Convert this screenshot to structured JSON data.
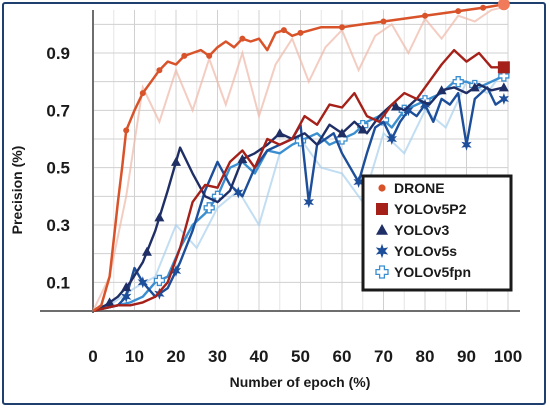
{
  "chart_data": {
    "type": "line",
    "xlabel": "Number of epoch (%)",
    "ylabel": "Precision (%)",
    "xlim": [
      0,
      100
    ],
    "ylim": [
      0,
      1.05
    ],
    "x_ticks": [
      "0",
      "10",
      "20",
      "30",
      "40",
      "50",
      "60",
      "70",
      "80",
      "90",
      "100"
    ],
    "x_tick_values": [
      0,
      10,
      20,
      30,
      40,
      50,
      60,
      70,
      80,
      90,
      100
    ],
    "y_ticks": [
      "0.1",
      "0.3",
      "0.5",
      "0.7",
      "0.9"
    ],
    "y_tick_values": [
      0.1,
      0.3,
      0.5,
      0.7,
      0.9
    ],
    "grid": true,
    "legend_position": "center-right",
    "series": [
      {
        "name": "DRONE",
        "color": "#d9532a",
        "marker": "circle",
        "x": [
          0,
          2,
          4,
          5,
          6,
          7,
          8,
          10,
          12,
          14,
          16,
          18,
          20,
          22,
          24,
          26,
          28,
          30,
          32,
          34,
          36,
          38,
          40,
          42,
          44,
          46,
          48,
          50,
          55,
          60,
          65,
          70,
          75,
          80,
          85,
          90,
          95,
          99
        ],
        "y": [
          0.0,
          0.02,
          0.12,
          0.25,
          0.38,
          0.5,
          0.63,
          0.7,
          0.76,
          0.8,
          0.84,
          0.87,
          0.86,
          0.89,
          0.9,
          0.91,
          0.89,
          0.92,
          0.94,
          0.92,
          0.95,
          0.94,
          0.95,
          0.91,
          0.97,
          0.98,
          0.96,
          0.97,
          0.99,
          0.99,
          1.0,
          1.01,
          1.02,
          1.03,
          1.04,
          1.05,
          1.06,
          1.07
        ],
        "marker_x": [
          8,
          12,
          16,
          22,
          28,
          36,
          46,
          50,
          60,
          70,
          80,
          88,
          94,
          99
        ]
      },
      {
        "name": "YOLOv5P2",
        "color": "#a52018",
        "marker": "square",
        "x": [
          0,
          3,
          6,
          9,
          12,
          15,
          18,
          21,
          24,
          27,
          30,
          33,
          36,
          39,
          42,
          45,
          48,
          51,
          54,
          57,
          60,
          63,
          66,
          69,
          72,
          75,
          78,
          81,
          84,
          87,
          90,
          93,
          96,
          99
        ],
        "y": [
          0.0,
          0.01,
          0.02,
          0.02,
          0.03,
          0.05,
          0.1,
          0.22,
          0.38,
          0.44,
          0.43,
          0.52,
          0.56,
          0.5,
          0.6,
          0.58,
          0.6,
          0.68,
          0.65,
          0.72,
          0.71,
          0.76,
          0.68,
          0.66,
          0.72,
          0.76,
          0.74,
          0.8,
          0.86,
          0.91,
          0.87,
          0.9,
          0.85,
          0.85
        ],
        "marker_x": []
      },
      {
        "name": "YOLOv3",
        "color": "#1f2f66",
        "marker": "triangle",
        "x": [
          0,
          3,
          6,
          9,
          12,
          15,
          18,
          21,
          24,
          27,
          30,
          33,
          36,
          39,
          42,
          45,
          48,
          51,
          54,
          57,
          60,
          63,
          66,
          69,
          72,
          75,
          78,
          81,
          84,
          87,
          90,
          93,
          96,
          99
        ],
        "y": [
          0.0,
          0.02,
          0.05,
          0.1,
          0.17,
          0.28,
          0.42,
          0.57,
          0.48,
          0.4,
          0.38,
          0.42,
          0.53,
          0.55,
          0.58,
          0.62,
          0.6,
          0.62,
          0.58,
          0.65,
          0.62,
          0.66,
          0.62,
          0.68,
          0.72,
          0.7,
          0.74,
          0.72,
          0.77,
          0.78,
          0.76,
          0.79,
          0.77,
          0.78
        ],
        "marker_x": [
          4,
          8,
          13,
          16,
          20,
          36,
          45,
          60,
          65,
          73,
          84,
          92,
          99
        ]
      },
      {
        "name": "YOLOv5s",
        "color": "#1d4e9a",
        "marker": "star",
        "x": [
          0,
          3,
          6,
          8,
          10,
          12,
          15,
          18,
          21,
          24,
          27,
          30,
          33,
          36,
          39,
          42,
          45,
          48,
          50,
          52,
          54,
          56,
          58,
          60,
          62,
          64,
          66,
          68,
          70,
          72,
          74,
          76,
          78,
          80,
          82,
          84,
          86,
          88,
          90,
          92,
          95,
          97,
          99
        ],
        "y": [
          0.0,
          0.01,
          0.02,
          0.05,
          0.15,
          0.1,
          0.05,
          0.08,
          0.17,
          0.28,
          0.42,
          0.52,
          0.44,
          0.4,
          0.5,
          0.56,
          0.58,
          0.6,
          0.65,
          0.38,
          0.58,
          0.6,
          0.62,
          0.55,
          0.5,
          0.45,
          0.55,
          0.64,
          0.66,
          0.6,
          0.66,
          0.7,
          0.68,
          0.72,
          0.66,
          0.74,
          0.72,
          0.76,
          0.58,
          0.74,
          0.78,
          0.72,
          0.74
        ],
        "marker_x": [
          8,
          12,
          16,
          20,
          35,
          52,
          64,
          72,
          76,
          80,
          90,
          99
        ]
      },
      {
        "name": "YOLOv5fpn",
        "color": "#3b8fd0",
        "marker": "cross",
        "x": [
          0,
          3,
          6,
          9,
          12,
          15,
          18,
          21,
          24,
          27,
          30,
          33,
          36,
          39,
          42,
          45,
          48,
          51,
          54,
          57,
          60,
          63,
          66,
          69,
          72,
          75,
          78,
          81,
          84,
          87,
          90,
          93,
          96,
          99
        ],
        "y": [
          0.0,
          0.01,
          0.02,
          0.03,
          0.05,
          0.1,
          0.12,
          0.22,
          0.3,
          0.34,
          0.4,
          0.5,
          0.52,
          0.48,
          0.56,
          0.55,
          0.58,
          0.6,
          0.62,
          0.58,
          0.6,
          0.62,
          0.66,
          0.68,
          0.64,
          0.7,
          0.72,
          0.74,
          0.76,
          0.8,
          0.8,
          0.78,
          0.8,
          0.82
        ],
        "marker_x": [
          16,
          28,
          30,
          50,
          60,
          65,
          70,
          75,
          80,
          88,
          92,
          99
        ]
      }
    ],
    "shadow_traces": [
      {
        "color": "#f0b8a8",
        "x": [
          0,
          4,
          8,
          12,
          16,
          20,
          24,
          28,
          32,
          36,
          40,
          44,
          48,
          52,
          56,
          60,
          64,
          68,
          72,
          76,
          80,
          84,
          88,
          92,
          96,
          99
        ],
        "y": [
          0.0,
          0.12,
          0.4,
          0.78,
          0.66,
          0.84,
          0.7,
          0.88,
          0.72,
          0.9,
          0.68,
          0.86,
          0.95,
          0.8,
          0.92,
          0.98,
          0.84,
          0.96,
          1.0,
          0.9,
          1.02,
          0.95,
          1.03,
          1.01,
          1.05,
          1.06
        ]
      },
      {
        "color": "#a8d0ee",
        "x": [
          0,
          5,
          10,
          15,
          20,
          25,
          30,
          35,
          40,
          45,
          50,
          55,
          60,
          65,
          70,
          75,
          80,
          85,
          90,
          95,
          99
        ],
        "y": [
          0.0,
          0.03,
          0.08,
          0.12,
          0.3,
          0.22,
          0.36,
          0.42,
          0.3,
          0.55,
          0.6,
          0.5,
          0.48,
          0.38,
          0.62,
          0.55,
          0.7,
          0.64,
          0.8,
          0.76,
          0.84
        ]
      }
    ]
  }
}
